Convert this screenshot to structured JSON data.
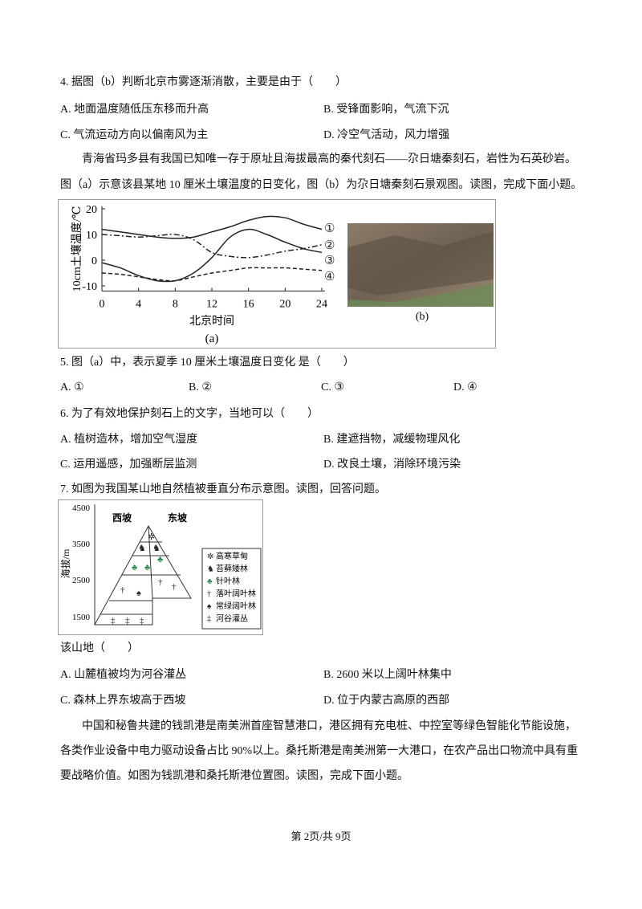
{
  "q4": {
    "stem": "4. 据图（b）判断北京市雾逐渐消散，主要是由于（　　）",
    "options": [
      "A. 地面温度随低压东移而升高",
      "B. 受锋面影响，气流下沉",
      "C. 气流运动方向以偏南风为主",
      "D. 冷空气活动，风力增强"
    ]
  },
  "passage1": [
    "青海省玛多县有我国已知唯一存于原址且海拔最高的秦代刻石——尕日塘秦刻石，岩性为石英砂岩。",
    "图（a）示意该县某地 10 厘米土壤温度的日变化，图（b）为尕日塘秦刻石景观图。读图，完成下面小题。"
  ],
  "chart_data": {
    "type": "line",
    "ylabel": "10cm土壤温度/℃",
    "xlabel": "北京时间",
    "caption": "(a)",
    "x": [
      0,
      2,
      4,
      6,
      8,
      10,
      12,
      14,
      16,
      18,
      20,
      22,
      24
    ],
    "xlim": [
      0,
      24
    ],
    "xticks": [
      0,
      4,
      8,
      12,
      16,
      20,
      24
    ],
    "ylim": [
      -12,
      21
    ],
    "yticks": [
      -10,
      0,
      10,
      20
    ],
    "series": [
      {
        "name": "①",
        "color": "#222222",
        "style": "solid",
        "values": [
          12,
          11,
          10,
          9,
          8.5,
          9,
          11,
          13,
          15.5,
          17,
          16.5,
          14,
          12
        ]
      },
      {
        "name": "②",
        "color": "#222222",
        "style": "dashdot",
        "values": [
          10,
          9.5,
          9,
          9.5,
          10,
          8,
          3,
          1.5,
          1,
          2,
          3.5,
          4.5,
          6
        ]
      },
      {
        "name": "③",
        "color": "#222222",
        "style": "solid",
        "values": [
          -1,
          -3,
          -6,
          -8,
          -8,
          -5,
          1,
          9,
          12,
          10,
          7,
          4.5,
          3
        ]
      },
      {
        "name": "④",
        "color": "#222222",
        "style": "dashed",
        "values": [
          -5,
          -5.5,
          -6.5,
          -7.5,
          -8,
          -6.5,
          -5,
          -4,
          -3,
          -3,
          -3,
          -3.5,
          -4
        ]
      }
    ]
  },
  "photo_caption": "(b)",
  "q5": {
    "stem": "5. 图（a）中，表示夏季 10 厘米土壤温度日变化 是（　　）",
    "options": [
      "A. ①",
      "B. ②",
      "C. ③",
      "D. ④"
    ]
  },
  "q6": {
    "stem": "6. 为了有效地保护刻石上的文字，当地可以（　　）",
    "options": [
      "A. 植树造林，增加空气湿度",
      "B. 建遮挡物，减缓物理风化",
      "C. 运用遥感，加强断层监测",
      "D. 改良土壤，消除环境污染"
    ]
  },
  "q7": {
    "stem": "7. 如图为我国某山地自然植被垂直分布示意图。读图，回答问题。",
    "figure": {
      "ylabel": "海拔/m",
      "yticks": [
        "4500",
        "3500",
        "2500",
        "1500"
      ],
      "west": "西坡",
      "east": "东坡",
      "legend": [
        "高寒草甸",
        "苔藓矮林",
        "针叶林",
        "落叶阔叶林",
        "常绿阔叶林",
        "河谷灌丛"
      ]
    },
    "sub_stem": "该山地（　　）",
    "options": [
      "A. 山麓植被均为河谷灌丛",
      "B. 2600 米以上阔叶林集中",
      "C. 森林上界东坡高于西坡",
      "D. 位于内蒙古高原的西部"
    ]
  },
  "passage2": [
    "中国和秘鲁共建的钱凯港是南美洲首座智慧港口，港区拥有充电桩、中控室等绿色智能化节能设施，",
    "各类作业设备中电力驱动设备占比 90%以上。桑托斯港是南美洲第一大港口，在农产品出口物流中具有重",
    "要战略价值。如图为钱凯港和桑托斯港位置图。读图，完成下面小题。"
  ],
  "footer": "第 2页/共 9页"
}
